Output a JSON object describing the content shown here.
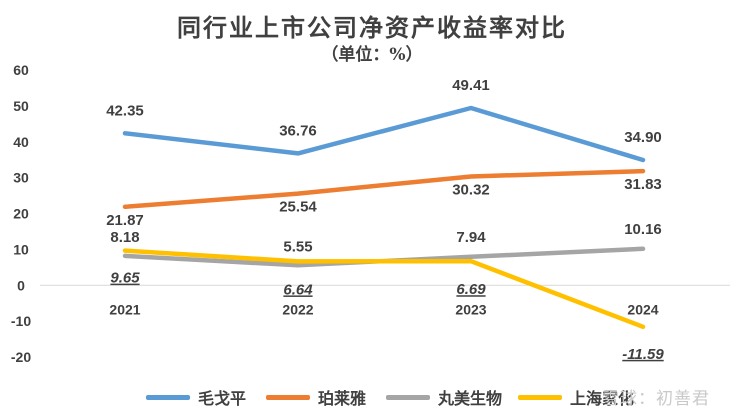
{
  "chart_data": {
    "type": "line",
    "title": "同行业上市公司净资产收益率对比",
    "subtitle": "（单位：%）",
    "categories": [
      "2021",
      "2022",
      "2023",
      "2024"
    ],
    "ylim": [
      -20,
      60
    ],
    "yticks": [
      "60",
      "50",
      "40",
      "30",
      "20",
      "10",
      "0",
      "-10",
      "-20"
    ],
    "grid": false,
    "legend_position": "bottom",
    "series": [
      {
        "name": "毛戈平",
        "color": "#5b9bd5",
        "values": [
          42.35,
          36.76,
          49.41,
          34.9
        ],
        "labels": [
          "42.35",
          "36.76",
          "49.41",
          "34.90"
        ]
      },
      {
        "name": "珀莱雅",
        "color": "#ed7d31",
        "values": [
          21.87,
          25.54,
          30.32,
          31.83
        ],
        "labels": [
          "21.87",
          "25.54",
          "30.32",
          "31.83"
        ]
      },
      {
        "name": "丸美生物",
        "color": "#a5a5a5",
        "values": [
          8.18,
          5.55,
          7.94,
          10.16
        ],
        "labels": [
          "8.18",
          "5.55",
          "7.94",
          "10.16"
        ]
      },
      {
        "name": "上海家化",
        "color": "#ffc000",
        "values": [
          9.65,
          6.64,
          6.69,
          -11.59
        ],
        "labels": [
          "9.65",
          "6.64",
          "6.69",
          "-11.59"
        ]
      }
    ]
  },
  "watermark": "雪球：初善君"
}
